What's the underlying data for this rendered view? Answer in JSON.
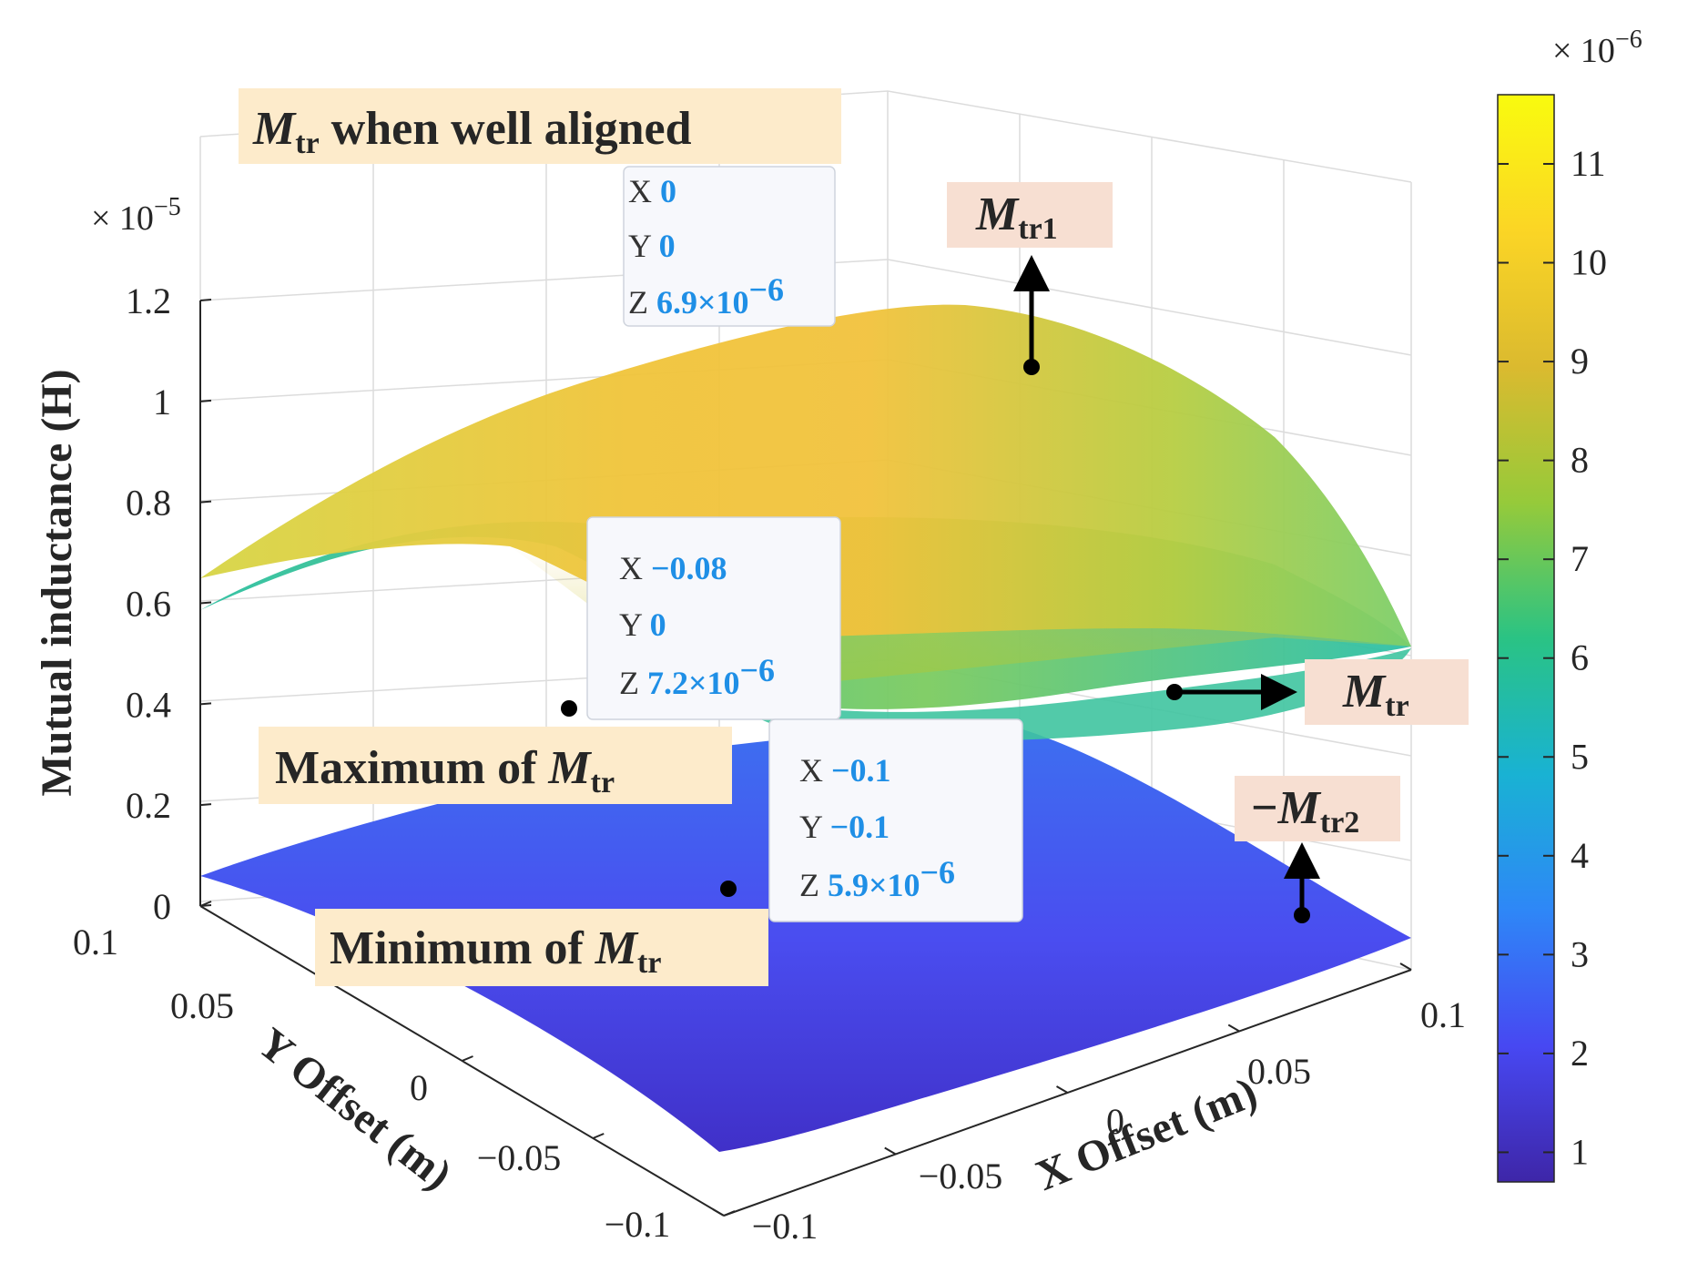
{
  "chart_data": {
    "type": "surface",
    "xlabel": "X Offset (m)",
    "ylabel": "Y Offset (m)",
    "zlabel": "Mutual inductance (H)",
    "z_multiplier": "× 10",
    "z_multiplier_exp": "−5",
    "colorbar_multiplier": "× 10",
    "colorbar_multiplier_exp": "−6",
    "xlim": [
      -0.1,
      0.1
    ],
    "ylim": [
      -0.1,
      0.1
    ],
    "zlim": [
      0,
      1.2
    ],
    "x_ticks": [
      "−0.1",
      "−0.05",
      "0",
      "0.05",
      "0.1"
    ],
    "y_ticks": [
      "−0.1",
      "−0.05",
      "0",
      "0.05",
      "0.1"
    ],
    "z_ticks": [
      "0",
      "0.2",
      "0.4",
      "0.6",
      "0.8",
      "1",
      "1.2"
    ],
    "colorbar_ticks": [
      "1",
      "2",
      "3",
      "4",
      "5",
      "6",
      "7",
      "8",
      "9",
      "10",
      "11"
    ],
    "colorbar_range": [
      0.7,
      11.7
    ],
    "colormap": [
      "#3e26a8",
      "#4748f2",
      "#2e87f7",
      "#19b2d3",
      "#2ac384",
      "#96ca3a",
      "#dbba2f",
      "#fbd525",
      "#f9fb0e"
    ],
    "series": [
      {
        "name": "Mtr1",
        "peak": 1.1e-05,
        "edge": 5.5e-06
      },
      {
        "name": "Mtr",
        "peak": 6.9e-06,
        "edge": 5e-06
      },
      {
        "name": "−Mtr2",
        "peak": 5e-07,
        "edge": 1.5e-06
      }
    ],
    "datatips": [
      {
        "x": "0",
        "y": "0",
        "z": "6.9×10",
        "z_exp": "−6"
      },
      {
        "x": "−0.08",
        "y": "0",
        "z": "7.2×10",
        "z_exp": "−6"
      },
      {
        "x": "−0.1",
        "y": "−0.1",
        "z": "5.9×10",
        "z_exp": "−6"
      }
    ],
    "annotations": {
      "aligned": {
        "main": "M",
        "sub": "tr",
        "rest": " when well aligned"
      },
      "maximum": {
        "main": "Maximum of ",
        "italic": "M",
        "sub": "tr"
      },
      "minimum": {
        "main": "Minimum of ",
        "italic": "M",
        "sub": "tr"
      },
      "mtr1": {
        "italic": "M",
        "sub": "tr1"
      },
      "mtr": {
        "italic": "M",
        "sub": "tr"
      },
      "mtr2": {
        "prefix": "−",
        "italic": "M",
        "sub": "tr2"
      }
    }
  }
}
